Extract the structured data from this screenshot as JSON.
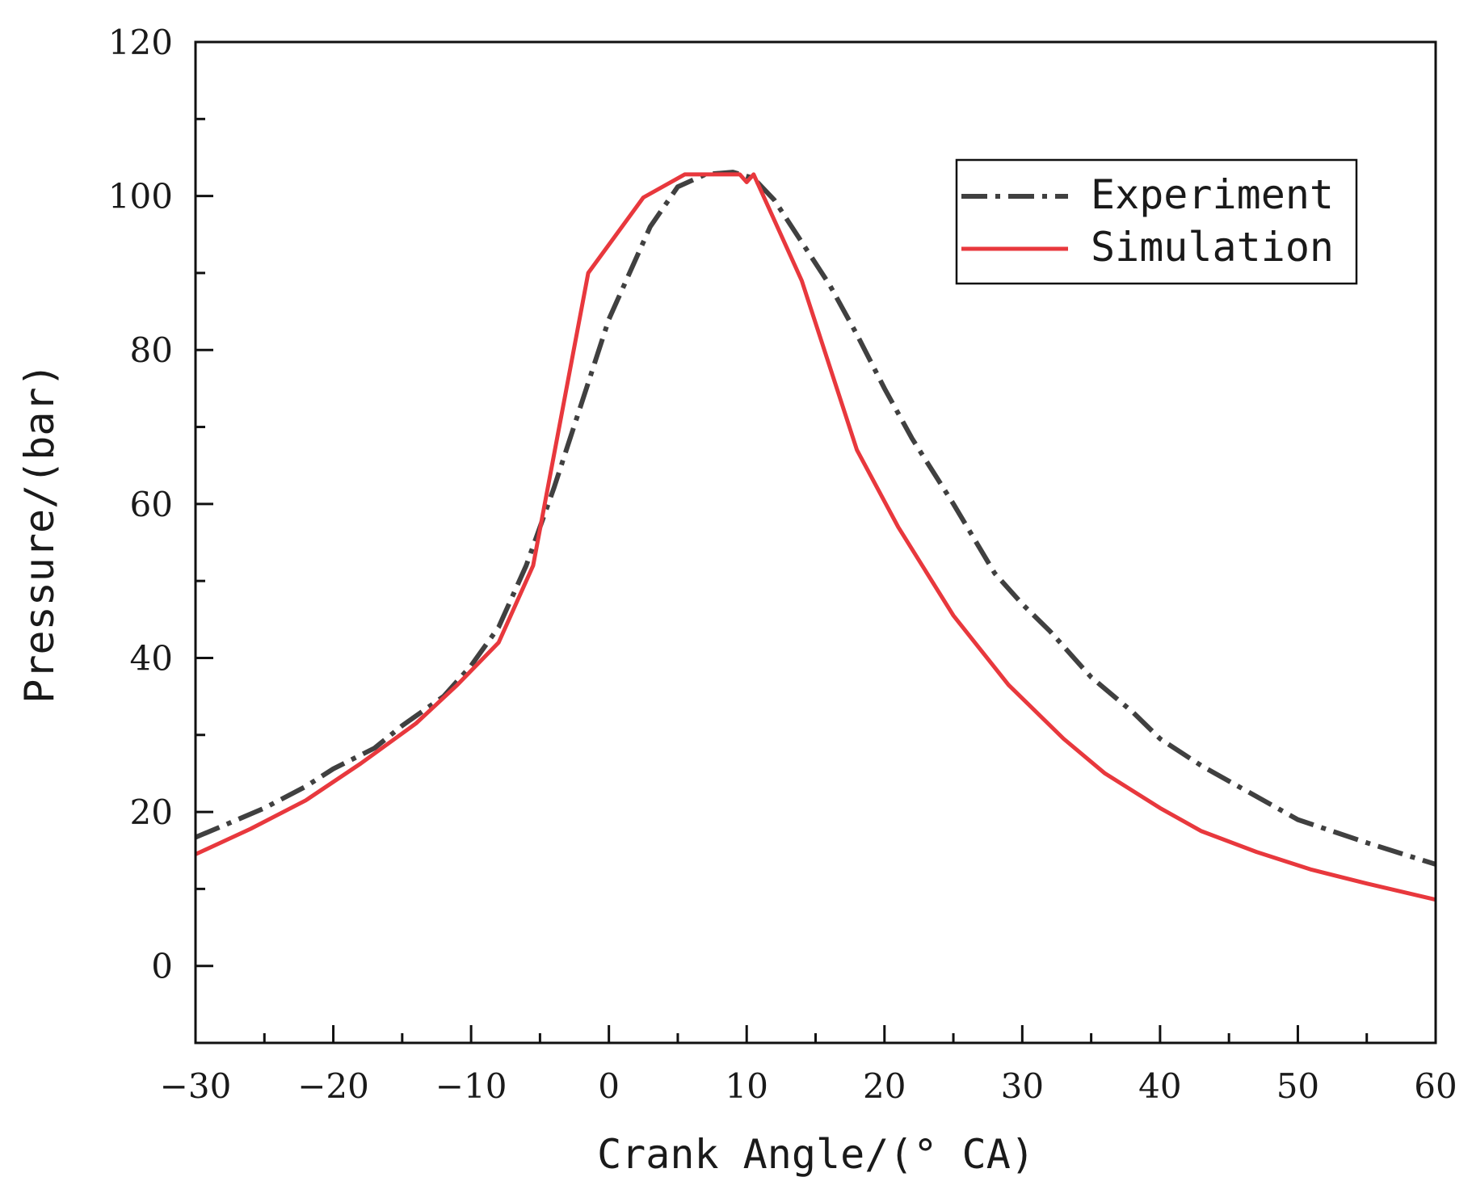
{
  "chart_data": {
    "type": "line",
    "title": "",
    "xlabel": "Crank Angle/(° CA)",
    "ylabel": "Pressure/(bar)",
    "xlim": [
      -30,
      60
    ],
    "ylim": [
      -10,
      120
    ],
    "xticks": [
      -30,
      -20,
      -10,
      0,
      10,
      20,
      30,
      40,
      50,
      60
    ],
    "xtick_labels": [
      "−30",
      "−20",
      "−10",
      "0",
      "10",
      "20",
      "30",
      "40",
      "50",
      "60"
    ],
    "yticks": [
      0,
      20,
      40,
      60,
      80,
      100,
      120
    ],
    "ytick_labels": [
      "0",
      "20",
      "40",
      "60",
      "80",
      "100",
      "120"
    ],
    "grid": false,
    "legend_position": "top-right",
    "series": [
      {
        "name": "Experiment",
        "style": "dashdot",
        "color": "#404040",
        "x": [
          -30,
          -28,
          -25,
          -22,
          -20,
          -17,
          -15,
          -12,
          -10,
          -8,
          -6,
          -4,
          -2,
          0,
          3,
          5,
          7,
          9,
          10.5,
          12,
          14,
          16,
          18,
          20,
          22,
          25,
          28,
          30,
          32,
          35,
          38,
          40,
          43,
          45,
          48,
          50,
          55,
          60
        ],
        "values": [
          16.7,
          18.2,
          20.5,
          23.3,
          25.6,
          28.3,
          31.2,
          35.0,
          39.0,
          44.0,
          52.0,
          62.0,
          73.0,
          84.0,
          96.0,
          101.2,
          102.8,
          103.1,
          102.3,
          99.5,
          94.0,
          88.5,
          82.0,
          75.0,
          68.5,
          60.0,
          51.0,
          47.0,
          43.5,
          37.5,
          33.0,
          29.5,
          26.0,
          24.0,
          21.0,
          19.0,
          16.0,
          13.2
        ]
      },
      {
        "name": "Simulation",
        "style": "solid",
        "color": "#e8383d",
        "x": [
          -30,
          -26,
          -22,
          -18,
          -14,
          -11,
          -8,
          -5.5,
          -1.5,
          2.5,
          5.5,
          9.5,
          10,
          10.5,
          14,
          18,
          21,
          25,
          29,
          33,
          36,
          40,
          43,
          47,
          51,
          55,
          60
        ],
        "values": [
          14.5,
          17.8,
          21.5,
          26.3,
          31.5,
          36.5,
          42.0,
          52.0,
          90.0,
          99.8,
          102.8,
          102.8,
          101.8,
          102.8,
          89.0,
          67.0,
          57.0,
          45.5,
          36.5,
          29.5,
          25.0,
          20.5,
          17.5,
          14.8,
          12.5,
          10.7,
          8.6
        ]
      }
    ]
  }
}
